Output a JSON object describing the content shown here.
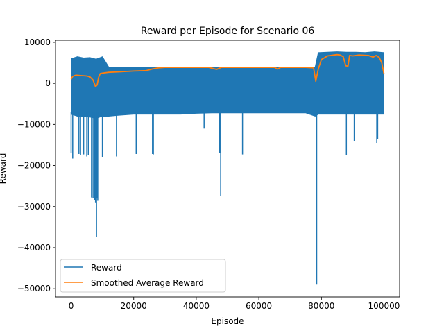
{
  "chart_data": {
    "type": "line",
    "title": "Reward per Episode for Scenario 06",
    "xlabel": "Episode",
    "ylabel": "Reward",
    "xlim": [
      -5000,
      105000
    ],
    "ylim": [
      -52000,
      10500
    ],
    "x_ticks": [
      0,
      20000,
      40000,
      60000,
      80000,
      100000
    ],
    "x_tick_labels": [
      "0",
      "20000",
      "40000",
      "60000",
      "80000",
      "100000"
    ],
    "y_ticks": [
      10000,
      0,
      -10000,
      -20000,
      -30000,
      -40000,
      -50000
    ],
    "y_tick_labels": [
      "10000",
      "0",
      "−10000",
      "−20000",
      "−30000",
      "−40000",
      "−50000"
    ],
    "grid": false,
    "legend_position": "lower-left",
    "colors": {
      "reward": "#1f77b4",
      "smoothed": "#ff7f0e"
    },
    "series": [
      {
        "name": "Reward",
        "style": "band",
        "x": [
          0,
          2000,
          4000,
          6000,
          8000,
          10000,
          12000,
          15000,
          20000,
          25000,
          30000,
          35000,
          40000,
          45000,
          50000,
          55000,
          60000,
          65000,
          70000,
          75000,
          78000,
          79000,
          82000,
          85000,
          88000,
          91000,
          94000,
          97000,
          100000
        ],
        "upper": [
          6000,
          6500,
          6200,
          6300,
          5900,
          6500,
          4000,
          4000,
          4000,
          4000,
          4000,
          4000,
          4000,
          4000,
          4000,
          4000,
          4000,
          4000,
          4000,
          4000,
          4000,
          7500,
          7600,
          7700,
          7600,
          7600,
          7500,
          7700,
          7500
        ],
        "lower": [
          -7500,
          -8000,
          -8000,
          -8200,
          -8500,
          -8000,
          -8000,
          -7800,
          -7500,
          -7500,
          -7500,
          -7500,
          -7300,
          -7200,
          -7200,
          -7200,
          -7200,
          -7200,
          -7200,
          -7200,
          -8000,
          -7500,
          -7500,
          -7500,
          -7500,
          -7500,
          -7500,
          -7500,
          -7500
        ]
      },
      {
        "name": "Reward",
        "style": "spikes",
        "x": [
          0,
          500,
          2500,
          3000,
          4000,
          5000,
          5500,
          6500,
          7000,
          7500,
          7800,
          8100,
          8300,
          8500,
          10000,
          14500,
          20800,
          21000,
          26000,
          26300,
          42500,
          47500,
          47800,
          54800,
          78500,
          88000,
          90500,
          97700,
          98000
        ],
        "y": [
          -17000,
          -18300,
          -17200,
          -17500,
          -17300,
          -17800,
          -17500,
          -27800,
          -28000,
          -28400,
          -29000,
          -37300,
          -28000,
          -28600,
          -18000,
          -17800,
          -17200,
          -17000,
          -17200,
          -17300,
          -11000,
          -17000,
          -27400,
          -17300,
          -49000,
          -17500,
          -14000,
          -14500,
          -13500
        ]
      },
      {
        "name": "Smoothed Average Reward",
        "style": "line",
        "x": [
          0,
          500,
          1500,
          3000,
          5000,
          6000,
          7000,
          7800,
          8300,
          8800,
          9300,
          10000,
          12000,
          15000,
          20000,
          24000,
          26000,
          28000,
          30000,
          35000,
          40000,
          44000,
          45000,
          46500,
          48000,
          55000,
          60000,
          65000,
          66000,
          67000,
          70000,
          75000,
          77500,
          78200,
          79000,
          80000,
          82000,
          85000,
          86000,
          87000,
          87800,
          88500,
          89000,
          90000,
          92000,
          95000,
          96500,
          97500,
          98500,
          99300,
          100000
        ],
        "y": [
          1000,
          1700,
          2000,
          1900,
          1800,
          1600,
          800,
          -800,
          -400,
          1500,
          2400,
          2500,
          2700,
          2800,
          3000,
          3100,
          3500,
          3800,
          3900,
          3900,
          3900,
          3900,
          3700,
          3400,
          3900,
          3900,
          3900,
          3900,
          3500,
          3900,
          3900,
          3900,
          3800,
          500,
          3500,
          5800,
          6700,
          7000,
          6900,
          6500,
          4300,
          4200,
          6800,
          6700,
          6900,
          6800,
          6400,
          6800,
          6300,
          5000,
          2300
        ]
      }
    ]
  }
}
